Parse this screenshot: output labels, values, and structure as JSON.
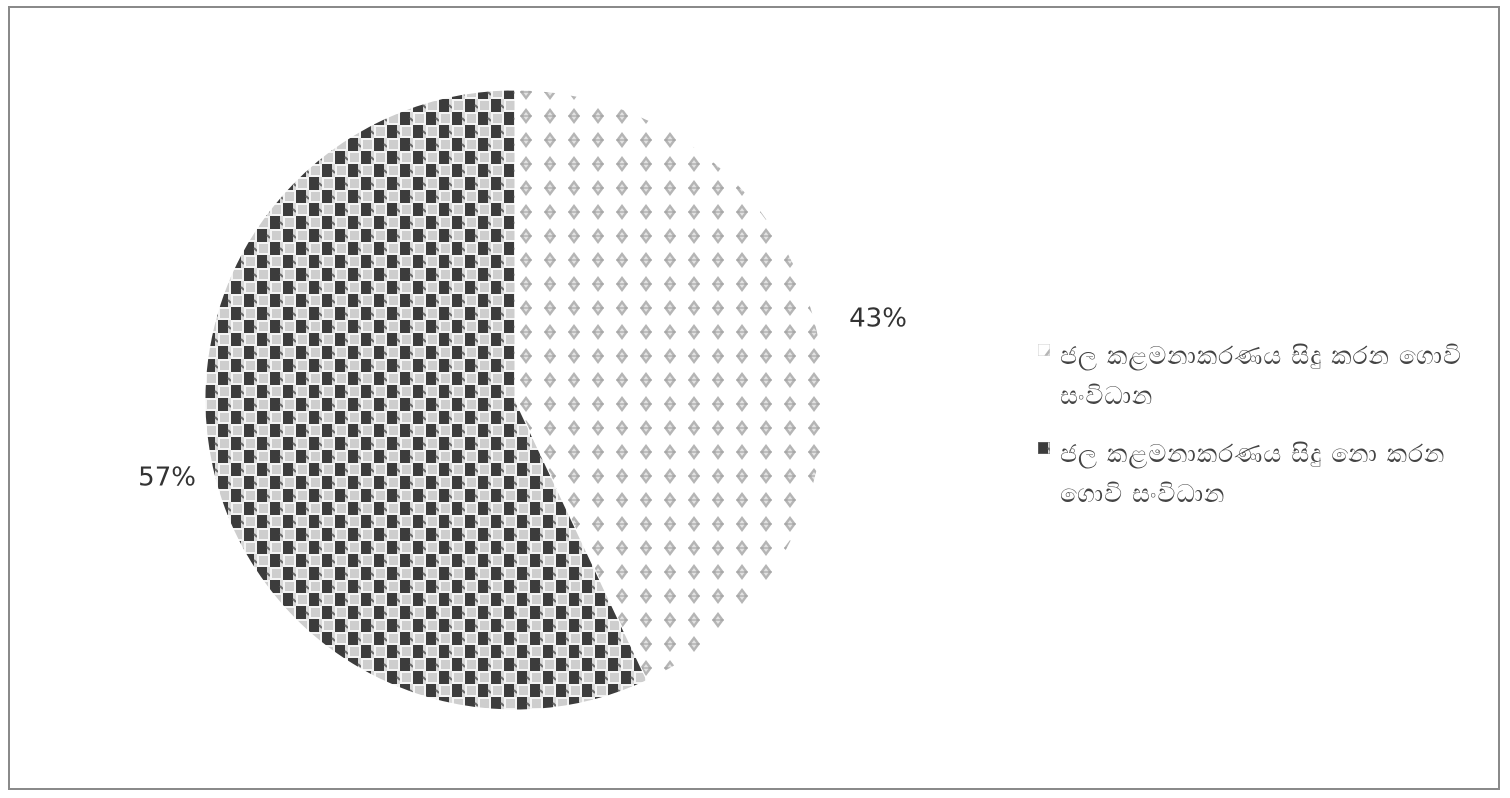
{
  "chart_data": {
    "type": "pie",
    "series": [
      {
        "name": "ජල කළමනාකරණය සිදු කරන ගොවි සංවිධාන",
        "value": 43,
        "label": "43%",
        "color": "#b5b5b5",
        "pattern": "diamond"
      },
      {
        "name": "ජල කළමනාකරණය සිදු නො කරන ගොවි සංවිධාන",
        "value": 57,
        "label": "57%",
        "color": "#3c3c3c",
        "pattern": "checker"
      }
    ],
    "start_angle": "12 o'clock, clockwise",
    "legend_position": "right",
    "title": ""
  }
}
